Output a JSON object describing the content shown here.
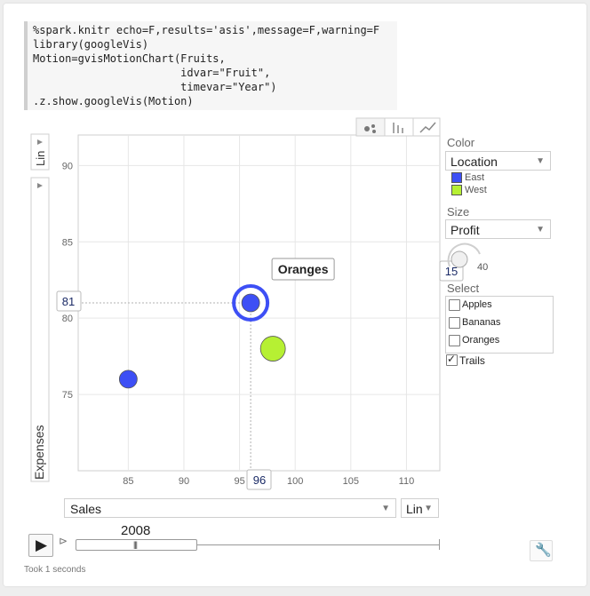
{
  "code": {
    "lines": [
      "%spark.knitr echo=F,results='asis',message=F,warning=F",
      "library(googleVis)",
      "Motion=gvisMotionChart(Fruits,",
      "                       idvar=\"Fruit\",",
      "                       timevar=\"Year\")",
      ".z.show.googleVis(Motion)"
    ]
  },
  "chart_data": {
    "type": "scatter",
    "xlabel": "Sales",
    "ylabel": "Expenses",
    "x_ticks": [
      85,
      90,
      95,
      100,
      105,
      110
    ],
    "y_ticks": [
      75,
      80,
      85,
      90
    ],
    "xlim": [
      80.5,
      113
    ],
    "ylim": [
      70,
      92
    ],
    "time_value": "2008",
    "x_readout": "96",
    "y_readout": "81",
    "points": [
      {
        "label": "",
        "x": 85,
        "y": 76,
        "color": "#3d4ff5",
        "size": "small"
      },
      {
        "label": "Oranges",
        "x": 96,
        "y": 81,
        "color": "#3d4ff5",
        "size": "small",
        "highlighted": true
      },
      {
        "label": "",
        "x": 98,
        "y": 78,
        "color": "#b6f033",
        "size": "large"
      }
    ]
  },
  "controls": {
    "x_axis_select": "Sales",
    "x_scale_select": "Lin",
    "y_scale_label": "Lin",
    "color_label": "Color",
    "color_select": "Location",
    "legend": [
      {
        "label": "East",
        "color": "#3d4ff5"
      },
      {
        "label": "West",
        "color": "#b6f033"
      }
    ],
    "size_label": "Size",
    "size_select": "Profit",
    "size_min": "15",
    "size_max": "40",
    "select_label": "Select",
    "select_items": [
      {
        "label": "Apples",
        "checked": false
      },
      {
        "label": "Bananas",
        "checked": false
      },
      {
        "label": "Oranges",
        "checked": false
      }
    ],
    "trails_label": "Trails",
    "trails_checked": true,
    "year_label": "2008",
    "play_icon": "play-icon",
    "settings_icon": "wrench-icon"
  },
  "footer": {
    "status": "Took 1 seconds"
  }
}
